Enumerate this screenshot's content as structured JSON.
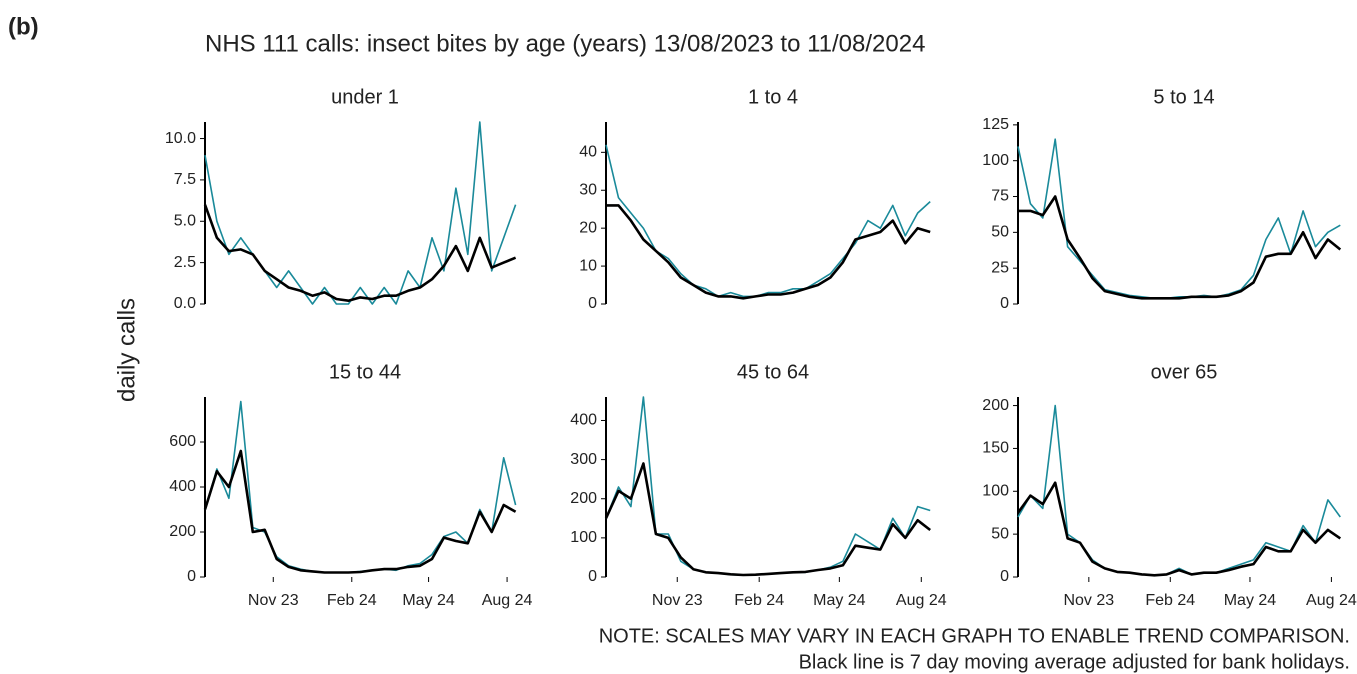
{
  "label": "(b)",
  "title": "NHS 111 calls: insect bites by age (years) 13/08/2023 to 11/08/2024",
  "y_label": "daily calls",
  "notes": [
    "NOTE: SCALES MAY VARY IN EACH GRAPH TO ENABLE TREND COMPARISON.",
    "Black line is 7 day moving average adjusted for bank holidays."
  ],
  "chart_data": [
    {
      "type": "line",
      "title": "under 1",
      "x": [
        0,
        14,
        28,
        42,
        56,
        70,
        84,
        98,
        112,
        126,
        140,
        154,
        168,
        182,
        196,
        210,
        224,
        238,
        252,
        266,
        280,
        294,
        308,
        322,
        336,
        350,
        364
      ],
      "xlim": [
        0,
        375
      ],
      "ylim": [
        0,
        11
      ],
      "yticks": [
        {
          "value": 0,
          "label": "0.0"
        },
        {
          "value": 2.5,
          "label": "2.5"
        },
        {
          "value": 5,
          "label": "5.0"
        },
        {
          "value": 7.5,
          "label": "7.5"
        },
        {
          "value": 10,
          "label": "10.0"
        }
      ],
      "series": [
        {
          "color": "#1a8a9a",
          "values": [
            9,
            5,
            3,
            4,
            3,
            2,
            1,
            2,
            1,
            0,
            1,
            0,
            0,
            1,
            0,
            1,
            0,
            2,
            1,
            4,
            2,
            7,
            3,
            11,
            2,
            4,
            6
          ]
        },
        {
          "color": "#000000",
          "values": [
            6,
            4,
            3.2,
            3.3,
            3,
            2,
            1.5,
            1,
            0.8,
            0.5,
            0.7,
            0.3,
            0.2,
            0.4,
            0.3,
            0.5,
            0.5,
            0.8,
            1,
            1.5,
            2.3,
            3.5,
            2,
            4,
            2.2,
            2.5,
            2.8
          ]
        }
      ]
    },
    {
      "type": "line",
      "title": "1 to 4",
      "x": [
        0,
        14,
        28,
        42,
        56,
        70,
        84,
        98,
        112,
        126,
        140,
        154,
        168,
        182,
        196,
        210,
        224,
        238,
        252,
        266,
        280,
        294,
        308,
        322,
        336,
        350,
        364
      ],
      "xlim": [
        0,
        375
      ],
      "ylim": [
        0,
        48
      ],
      "yticks": [
        0,
        10,
        20,
        30,
        40
      ],
      "series": [
        {
          "color": "#1a8a9a",
          "values": [
            42,
            28,
            24,
            20,
            14,
            12,
            8,
            5,
            4,
            2,
            3,
            2,
            2,
            3,
            3,
            4,
            4,
            6,
            8,
            12,
            16,
            22,
            20,
            26,
            18,
            24,
            27
          ]
        },
        {
          "color": "#000000",
          "values": [
            26,
            26,
            22,
            17,
            14,
            11,
            7,
            5,
            3,
            2,
            2,
            1.5,
            2,
            2.5,
            2.5,
            3,
            4,
            5,
            7,
            11,
            17,
            18,
            19,
            22,
            16,
            20,
            19
          ]
        }
      ]
    },
    {
      "type": "line",
      "title": "5 to 14",
      "x": [
        0,
        14,
        28,
        42,
        56,
        70,
        84,
        98,
        112,
        126,
        140,
        154,
        168,
        182,
        196,
        210,
        224,
        238,
        252,
        266,
        280,
        294,
        308,
        322,
        336,
        350,
        364
      ],
      "xlim": [
        0,
        375
      ],
      "ylim": [
        0,
        127
      ],
      "yticks": [
        0,
        25,
        50,
        75,
        100,
        125
      ],
      "series": [
        {
          "color": "#1a8a9a",
          "values": [
            110,
            70,
            60,
            115,
            40,
            30,
            20,
            10,
            8,
            6,
            5,
            4,
            4,
            5,
            5,
            6,
            5,
            7,
            10,
            20,
            45,
            60,
            35,
            65,
            40,
            50,
            55
          ]
        },
        {
          "color": "#000000",
          "values": [
            65,
            65,
            62,
            75,
            45,
            32,
            18,
            9,
            7,
            5,
            4,
            4,
            4,
            4,
            5,
            5,
            5,
            6,
            9,
            15,
            33,
            35,
            35,
            50,
            32,
            45,
            38
          ]
        }
      ]
    },
    {
      "type": "line",
      "title": "15 to 44",
      "x": [
        0,
        14,
        28,
        42,
        56,
        70,
        84,
        98,
        112,
        126,
        140,
        154,
        168,
        182,
        196,
        210,
        224,
        238,
        252,
        266,
        280,
        294,
        308,
        322,
        336,
        350,
        364
      ],
      "xlim": [
        0,
        375
      ],
      "xticks": [
        {
          "value": 80,
          "label": "Nov 23"
        },
        {
          "value": 172,
          "label": "Feb 24"
        },
        {
          "value": 262,
          "label": "May 24"
        },
        {
          "value": 354,
          "label": "Aug 24"
        }
      ],
      "ylim": [
        0,
        800
      ],
      "yticks": [
        0,
        200,
        400,
        600
      ],
      "series": [
        {
          "color": "#1a8a9a",
          "values": [
            300,
            480,
            350,
            780,
            220,
            200,
            90,
            50,
            35,
            25,
            20,
            20,
            20,
            25,
            30,
            35,
            30,
            50,
            60,
            100,
            180,
            200,
            150,
            300,
            200,
            530,
            320
          ]
        },
        {
          "color": "#000000",
          "values": [
            300,
            470,
            400,
            560,
            200,
            210,
            80,
            45,
            30,
            25,
            20,
            20,
            20,
            22,
            30,
            35,
            35,
            45,
            50,
            80,
            175,
            160,
            150,
            290,
            200,
            320,
            290
          ]
        }
      ]
    },
    {
      "type": "line",
      "title": "45 to 64",
      "x": [
        0,
        14,
        28,
        42,
        56,
        70,
        84,
        98,
        112,
        126,
        140,
        154,
        168,
        182,
        196,
        210,
        224,
        238,
        252,
        266,
        280,
        294,
        308,
        322,
        336,
        350,
        364
      ],
      "xlim": [
        0,
        375
      ],
      "xticks": [
        {
          "value": 80,
          "label": "Nov 23"
        },
        {
          "value": 172,
          "label": "Feb 24"
        },
        {
          "value": 262,
          "label": "May 24"
        },
        {
          "value": 354,
          "label": "Aug 24"
        }
      ],
      "ylim": [
        0,
        460
      ],
      "yticks": [
        0,
        100,
        200,
        300,
        400
      ],
      "series": [
        {
          "color": "#1a8a9a",
          "values": [
            150,
            230,
            180,
            460,
            110,
            110,
            40,
            20,
            12,
            10,
            6,
            5,
            6,
            8,
            10,
            12,
            12,
            18,
            25,
            40,
            110,
            90,
            70,
            150,
            100,
            180,
            170
          ]
        },
        {
          "color": "#000000",
          "values": [
            150,
            220,
            200,
            290,
            110,
            100,
            50,
            20,
            12,
            10,
            7,
            5,
            6,
            8,
            10,
            12,
            13,
            18,
            22,
            30,
            80,
            75,
            70,
            135,
            100,
            145,
            120
          ]
        }
      ]
    },
    {
      "type": "line",
      "title": "over 65",
      "x": [
        0,
        14,
        28,
        42,
        56,
        70,
        84,
        98,
        112,
        126,
        140,
        154,
        168,
        182,
        196,
        210,
        224,
        238,
        252,
        266,
        280,
        294,
        308,
        322,
        336,
        350,
        364
      ],
      "xlim": [
        0,
        375
      ],
      "xticks": [
        {
          "value": 80,
          "label": "Nov 23"
        },
        {
          "value": 172,
          "label": "Feb 24"
        },
        {
          "value": 262,
          "label": "May 24"
        },
        {
          "value": 354,
          "label": "Aug 24"
        }
      ],
      "ylim": [
        0,
        210
      ],
      "yticks": [
        0,
        50,
        100,
        150,
        200
      ],
      "series": [
        {
          "color": "#1a8a9a",
          "values": [
            70,
            95,
            80,
            200,
            50,
            40,
            20,
            10,
            6,
            5,
            3,
            2,
            3,
            10,
            3,
            5,
            5,
            10,
            15,
            20,
            40,
            35,
            30,
            60,
            40,
            90,
            70
          ]
        },
        {
          "color": "#000000",
          "values": [
            75,
            95,
            85,
            110,
            45,
            40,
            18,
            10,
            6,
            5,
            3,
            2,
            3,
            8,
            3,
            5,
            5,
            8,
            12,
            15,
            35,
            30,
            30,
            55,
            40,
            55,
            45
          ]
        }
      ]
    }
  ]
}
